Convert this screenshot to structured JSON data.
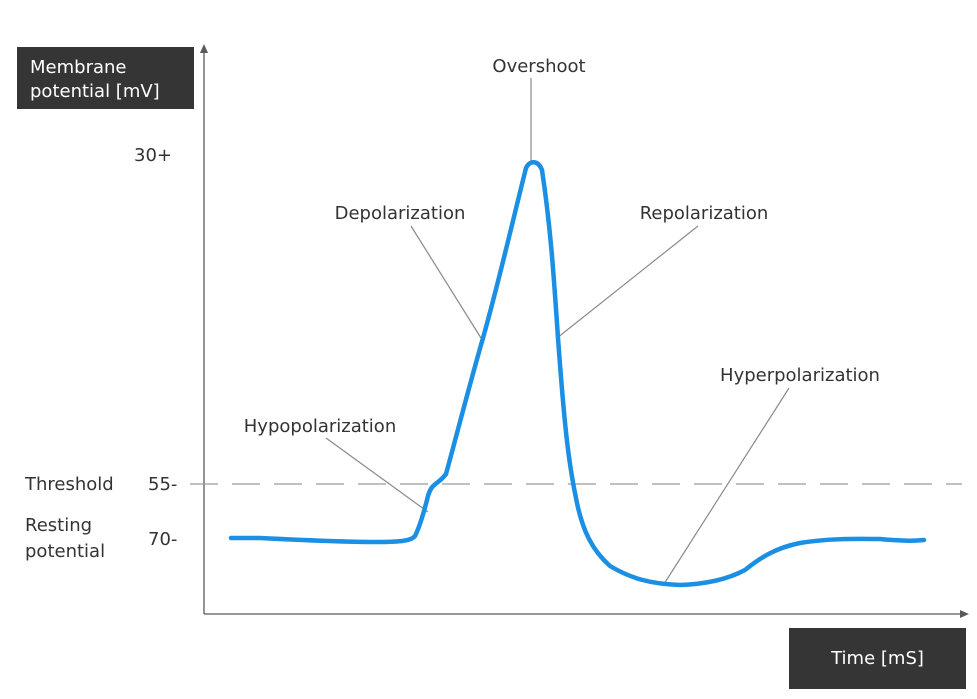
{
  "axes": {
    "y_label_line1": "Membrane",
    "y_label_line2": "potential [mV]",
    "x_label": "Time [mS]"
  },
  "y_ticks": {
    "top": "30+",
    "threshold": "55-",
    "resting": "70-"
  },
  "side_labels": {
    "threshold": "Threshold",
    "resting_line1": "Resting",
    "resting_line2": "potential"
  },
  "phases": {
    "overshoot": "Overshoot",
    "depolarization": "Depolarization",
    "repolarization": "Repolarization",
    "hyperpolarization": "Hyperpolarization",
    "hypopolarization": "Hypopolarization"
  },
  "colors": {
    "curve": "#1a8fe3",
    "label_box": "#353535",
    "axis": "#5a5a5a",
    "threshold_line": "#9a9a9a",
    "leader_line": "#8a8a8a"
  }
}
